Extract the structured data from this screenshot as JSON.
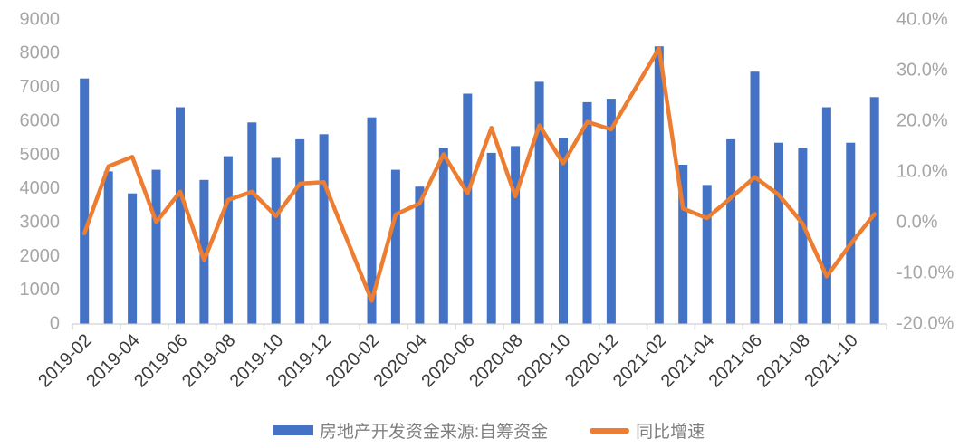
{
  "chart_data": {
    "type": "combo",
    "title": "",
    "categories": [
      "2019-02",
      "2019-03",
      "2019-04",
      "2019-05",
      "2019-06",
      "2019-07",
      "2019-08",
      "2019-09",
      "2019-10",
      "2019-11",
      "2019-12",
      "2020-01",
      "2020-02",
      "2020-03",
      "2020-04",
      "2020-05",
      "2020-06",
      "2020-07",
      "2020-08",
      "2020-09",
      "2020-10",
      "2020-11",
      "2020-12",
      "2021-01",
      "2021-02",
      "2021-03",
      "2021-04",
      "2021-05",
      "2021-06",
      "2021-07",
      "2021-08",
      "2021-09",
      "2021-10",
      "2021-11"
    ],
    "x_tick_labels": [
      "2019-02",
      "2019-04",
      "2019-06",
      "2019-08",
      "2019-10",
      "2019-12",
      "2020-02",
      "2020-04",
      "2020-06",
      "2020-08",
      "2020-10",
      "2020-12",
      "2021-02",
      "2021-04",
      "2021-06",
      "2021-08",
      "2021-10"
    ],
    "series": [
      {
        "name": "房地产开发资金来源:自筹资金",
        "type": "bar",
        "axis": "left",
        "color": "#4472C4",
        "values": [
          7250,
          4500,
          3850,
          4550,
          6400,
          4250,
          4950,
          5950,
          4900,
          5450,
          5600,
          null,
          6100,
          4550,
          4050,
          5200,
          6800,
          5050,
          5250,
          7150,
          5500,
          6550,
          6650,
          null,
          8200,
          4700,
          4100,
          5450,
          7450,
          5350,
          5200,
          6400,
          5350,
          6700
        ]
      },
      {
        "name": "同比增速",
        "type": "line",
        "axis": "right",
        "color": "#ED7D31",
        "values": [
          -2.2,
          11.0,
          12.9,
          0.0,
          6.0,
          -7.5,
          4.4,
          6.0,
          1.2,
          7.6,
          7.9,
          null,
          -15.5,
          1.5,
          3.7,
          13.4,
          5.7,
          18.6,
          5.1,
          19.1,
          11.6,
          19.8,
          18.3,
          null,
          34.3,
          2.7,
          0.8,
          4.8,
          8.9,
          5.4,
          -0.3,
          -10.7,
          -4.3,
          1.6
        ]
      }
    ],
    "left_axis": {
      "range": [
        0,
        9000
      ],
      "step": 1000,
      "labels": [
        "0",
        "1000",
        "2000",
        "3000",
        "4000",
        "5000",
        "6000",
        "7000",
        "8000",
        "9000"
      ]
    },
    "right_axis": {
      "range": [
        -20,
        40
      ],
      "step": 10,
      "labels": [
        "40.0%",
        "30.0%",
        "20.0%",
        "10.0%",
        "0.0%",
        "-10.0%",
        "-20.0%"
      ]
    },
    "legend_position": "bottom",
    "grid": false
  },
  "colors": {
    "bar": "#4472C4",
    "line": "#ED7D31",
    "y_axis_label": "#a6a6a6",
    "x_axis_label": "#3b3b3b",
    "axis_line": "#d9d9d9",
    "legend_text": "#7f7f7f"
  }
}
